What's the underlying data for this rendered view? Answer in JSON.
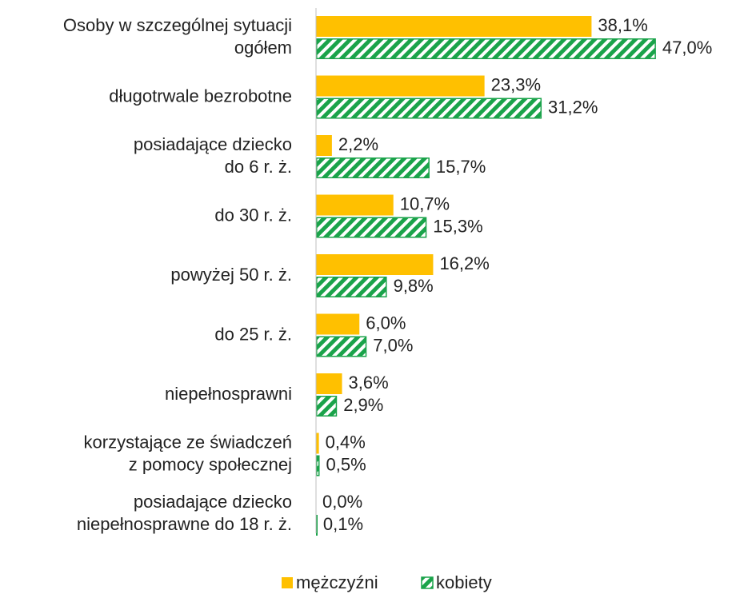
{
  "chart_data": {
    "type": "bar",
    "orientation": "horizontal",
    "categories": [
      "Osoby w szczególnej sytuacji\nogółem",
      "długotrwale bezrobotne",
      "posiadające dziecko\ndo 6 r. ż.",
      "do 30 r. ż.",
      "powyżej 50 r. ż.",
      "do 25 r. ż.",
      "niepełnosprawni",
      "korzystające ze świadczeń\nz pomocy społecznej",
      "posiadające dziecko\nniepełnosprawne do 18 r. ż."
    ],
    "series": [
      {
        "name": "mężczyźni",
        "color": "#ffc000",
        "values": [
          38.1,
          23.3,
          2.2,
          10.7,
          16.2,
          6.0,
          3.6,
          0.4,
          0.0
        ],
        "value_labels": [
          "38,1%",
          "23,3%",
          "2,2%",
          "10,7%",
          "16,2%",
          "6,0%",
          "3,6%",
          "0,4%",
          "0,0%"
        ]
      },
      {
        "name": "kobiety",
        "color": "#1aa34a",
        "pattern": "hatch",
        "values": [
          47.0,
          31.2,
          15.7,
          15.3,
          9.8,
          7.0,
          2.9,
          0.5,
          0.1
        ],
        "value_labels": [
          "47,0%",
          "31,2%",
          "15,7%",
          "15,3%",
          "9,8%",
          "7,0%",
          "2,9%",
          "0,5%",
          "0,1%"
        ]
      }
    ],
    "xlim": [
      0,
      50
    ],
    "legend": "bottom"
  }
}
